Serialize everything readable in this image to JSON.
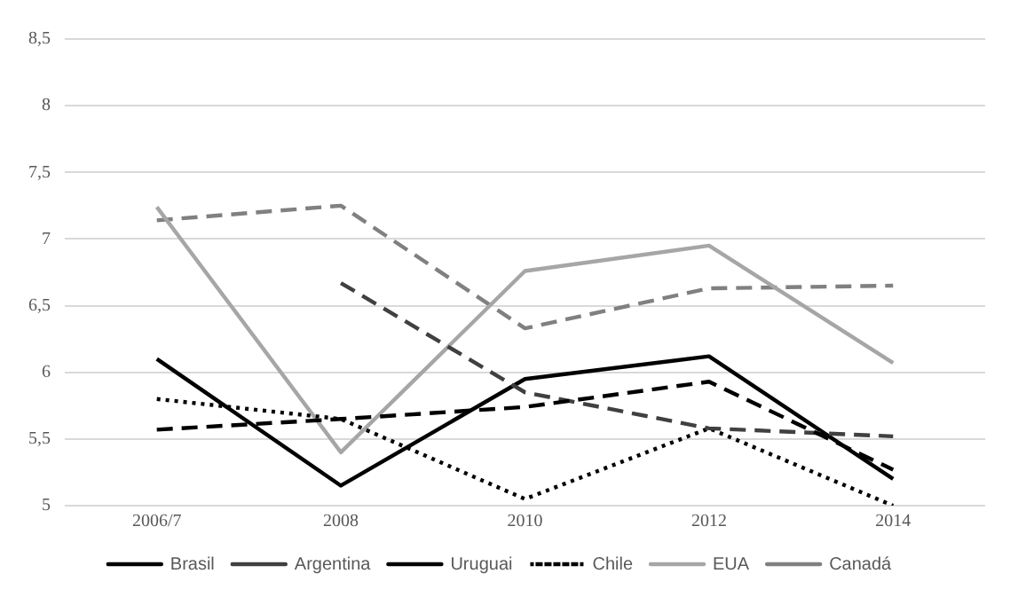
{
  "chart_data": {
    "type": "line",
    "categories": [
      "2006/7",
      "2008",
      "2010",
      "2012",
      "2014"
    ],
    "series": [
      {
        "name": "Brasil",
        "color": "#000000",
        "line_style": "dashed",
        "values": [
          5.57,
          5.65,
          5.74,
          5.93,
          5.27
        ]
      },
      {
        "name": "Argentina",
        "color": "#404040",
        "line_style": "dashed",
        "values": [
          null,
          6.67,
          5.85,
          5.58,
          5.52
        ]
      },
      {
        "name": "Uruguai",
        "color": "#000000",
        "line_style": "solid",
        "values": [
          6.1,
          5.15,
          5.95,
          6.12,
          5.2
        ]
      },
      {
        "name": "Chile",
        "color": "#000000",
        "line_style": "dotted",
        "values": [
          5.8,
          5.65,
          5.05,
          5.58,
          5.0
        ]
      },
      {
        "name": "EUA",
        "color": "#a6a6a6",
        "line_style": "solid",
        "values": [
          7.24,
          5.4,
          6.76,
          6.95,
          6.07
        ]
      },
      {
        "name": "Canadá",
        "color": "#808080",
        "line_style": "dashed",
        "values": [
          7.14,
          7.25,
          6.33,
          6.63,
          6.65
        ]
      }
    ],
    "ylim": [
      5,
      8.5
    ],
    "yticks": [
      5,
      {
        "value": 5.5,
        "label": "5,5"
      },
      6,
      {
        "value": 6.5,
        "label": "6,5"
      },
      7,
      {
        "value": 7.5,
        "label": "7,5"
      },
      8,
      {
        "value": 8.5,
        "label": "8,5"
      }
    ],
    "grid": "y",
    "legend": "bottom",
    "marker": "none"
  }
}
